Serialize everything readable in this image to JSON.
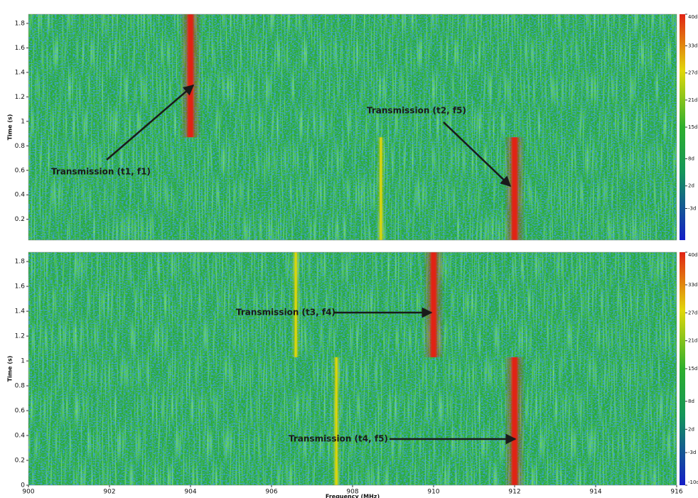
{
  "chart_data": [
    {
      "type": "spectrogram",
      "ylabel": "Time (s)",
      "xlim": [
        900,
        916
      ],
      "ylim": [
        0.03,
        1.875
      ],
      "yticks": [
        0.2,
        0.4,
        0.6,
        0.8,
        1,
        1.2,
        1.4,
        1.6,
        1.8
      ],
      "background_level": 14,
      "colorbar": {
        "clim": [
          -10,
          40
        ],
        "ticks": [
          {
            "value": 40,
            "label": "40d"
          },
          {
            "value": 33,
            "label": "33d"
          },
          {
            "value": 27,
            "label": "27d"
          },
          {
            "value": 21,
            "label": "21d"
          },
          {
            "value": 15,
            "label": "15d"
          },
          {
            "value": 8,
            "label": "8d"
          },
          {
            "value": 2,
            "label": "2d"
          },
          {
            "value": -3,
            "label": "-3d"
          }
        ]
      },
      "signals": [
        {
          "freq": 904,
          "t_start": 0.87,
          "t_end": 1.875,
          "level": 40
        },
        {
          "freq": 908.7,
          "t_start": 0.03,
          "t_end": 0.87,
          "level": 27
        },
        {
          "freq": 912,
          "t_start": 0.03,
          "t_end": 0.87,
          "level": 40
        }
      ],
      "annotations": [
        "Transmission (t1, f1)",
        "Transmission (t2, f5)"
      ]
    },
    {
      "type": "spectrogram",
      "ylabel": "Time (s)",
      "xlabel": "Frequency (MHz)",
      "xlim": [
        900,
        916
      ],
      "ylim": [
        0,
        1.875
      ],
      "xticks": [
        900,
        902,
        904,
        906,
        908,
        910,
        912,
        914,
        916
      ],
      "yticks": [
        0,
        0.2,
        0.4,
        0.6,
        0.8,
        1,
        1.2,
        1.4,
        1.6,
        1.8
      ],
      "background_level": 14,
      "colorbar": {
        "clim": [
          -10,
          40
        ],
        "ticks": [
          {
            "value": 40,
            "label": "40d"
          },
          {
            "value": 33,
            "label": "33d"
          },
          {
            "value": 27,
            "label": "27d"
          },
          {
            "value": 21,
            "label": "21d"
          },
          {
            "value": 15,
            "label": "15d"
          },
          {
            "value": 8,
            "label": "8d"
          },
          {
            "value": 2,
            "label": "2d"
          },
          {
            "value": -3,
            "label": "-3d"
          },
          {
            "value": -10,
            "label": "-10d"
          }
        ]
      },
      "signals": [
        {
          "freq": 910,
          "t_start": 1.03,
          "t_end": 1.875,
          "level": 40
        },
        {
          "freq": 906.6,
          "t_start": 1.03,
          "t_end": 1.875,
          "level": 27
        },
        {
          "freq": 912,
          "t_start": 0,
          "t_end": 1.03,
          "level": 40
        },
        {
          "freq": 907.6,
          "t_start": 0,
          "t_end": 1.03,
          "level": 27
        }
      ],
      "annotations": [
        "Transmission (t3, f4)",
        "Transmission (t4, f5)"
      ]
    }
  ]
}
